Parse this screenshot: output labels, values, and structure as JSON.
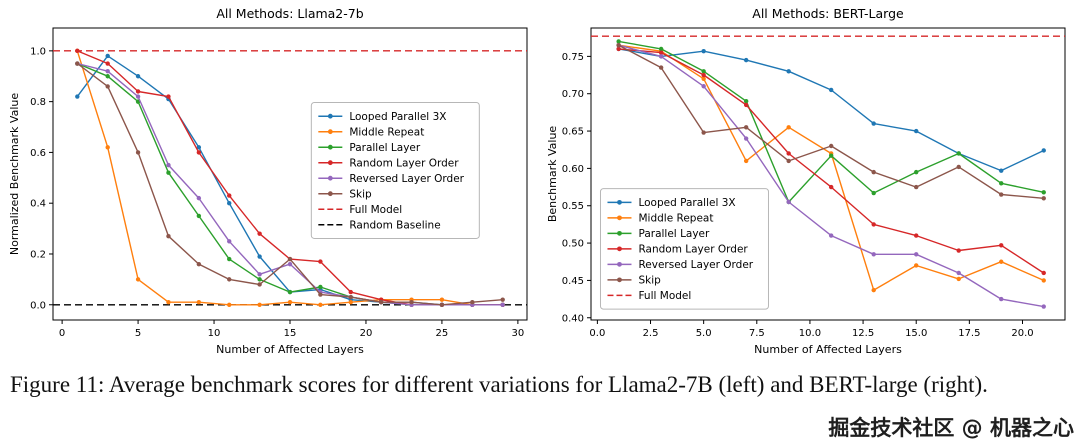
{
  "page": {
    "caption": "Figure 11: Average benchmark scores for different variations for Llama2-7B (left) and BERT-large (right).",
    "watermark": "掘金技术社区 @ 机器之心"
  },
  "chart_data": [
    {
      "type": "line",
      "title": "All Methods: Llama2-7b",
      "xlabel": "Number of Affected Layers",
      "ylabel": "Normalized Benchmark Value",
      "xlim": [
        -0.6,
        30.6
      ],
      "ylim": [
        -0.06,
        1.09
      ],
      "xticks": [
        0,
        5,
        10,
        15,
        20,
        25,
        30
      ],
      "xtick_labels": [
        "0",
        "5",
        "10",
        "15",
        "20",
        "25",
        "30"
      ],
      "yticks": [
        0.0,
        0.2,
        0.4,
        0.6,
        0.8,
        1.0
      ],
      "ytick_labels": [
        "0.0",
        "0.2",
        "0.4",
        "0.6",
        "0.8",
        "1.0"
      ],
      "grid": false,
      "legend_position": "center-right",
      "legend_frac": [
        0.545,
        0.255
      ],
      "x": [
        1,
        3,
        5,
        7,
        9,
        11,
        13,
        15,
        17,
        19,
        21,
        23,
        25,
        27,
        29
      ],
      "series": [
        {
          "name": "Looped Parallel 3X",
          "color": "#1f77b4",
          "values": [
            0.82,
            0.98,
            0.9,
            0.81,
            0.62,
            0.4,
            0.19,
            0.05,
            0.06,
            0.02,
            0.01,
            0.01,
            0.0,
            0.0,
            0.0
          ]
        },
        {
          "name": "Middle Repeat",
          "color": "#ff7f0e",
          "values": [
            1.0,
            0.62,
            0.1,
            0.01,
            0.01,
            0.0,
            0.0,
            0.01,
            0.0,
            0.01,
            0.02,
            0.02,
            0.02,
            0.0,
            0.0
          ]
        },
        {
          "name": "Parallel Layer",
          "color": "#2ca02c",
          "values": [
            0.95,
            0.9,
            0.8,
            0.52,
            0.35,
            0.18,
            0.1,
            0.05,
            0.07,
            0.03,
            0.01,
            0.0,
            0.0,
            0.0,
            0.0
          ]
        },
        {
          "name": "Random Layer Order",
          "color": "#d62728",
          "values": [
            1.0,
            0.95,
            0.84,
            0.82,
            0.6,
            0.43,
            0.28,
            0.18,
            0.17,
            0.05,
            0.02,
            0.0,
            0.0,
            0.0,
            0.0
          ]
        },
        {
          "name": "Reversed Layer Order",
          "color": "#9467bd",
          "values": [
            0.95,
            0.92,
            0.82,
            0.55,
            0.42,
            0.25,
            0.12,
            0.16,
            0.05,
            0.03,
            0.01,
            0.0,
            0.0,
            0.0,
            0.0
          ]
        },
        {
          "name": "Skip",
          "color": "#8c564b",
          "values": [
            0.95,
            0.86,
            0.6,
            0.27,
            0.16,
            0.1,
            0.08,
            0.18,
            0.04,
            0.03,
            0.01,
            0.01,
            0.0,
            0.01,
            0.02
          ]
        }
      ],
      "hlines": [
        {
          "label": "Full Model",
          "y": 1.0,
          "color": "#d62728"
        },
        {
          "label": "Random Baseline",
          "y": 0.0,
          "color": "#000000"
        }
      ]
    },
    {
      "type": "line",
      "title": "All Methods: BERT-Large",
      "xlabel": "Number of Affected Layers",
      "ylabel": "Benchmark Value",
      "xlim": [
        -0.3,
        22.0
      ],
      "ylim": [
        0.397,
        0.788
      ],
      "xticks": [
        0,
        2.5,
        5,
        7.5,
        10,
        12.5,
        15,
        17.5,
        20
      ],
      "xtick_labels": [
        "0.0",
        "2.5",
        "5.0",
        "7.5",
        "10.0",
        "12.5",
        "15.0",
        "17.5",
        "20.0"
      ],
      "yticks": [
        0.4,
        0.45,
        0.5,
        0.55,
        0.6,
        0.65,
        0.7,
        0.75
      ],
      "ytick_labels": [
        "0.40",
        "0.45",
        "0.50",
        "0.55",
        "0.60",
        "0.65",
        "0.70",
        "0.75"
      ],
      "grid": false,
      "legend_position": "lower-left",
      "legend_frac": [
        0.02,
        0.55
      ],
      "x": [
        1,
        3,
        5,
        7,
        9,
        11,
        13,
        15,
        17,
        19,
        21
      ],
      "series": [
        {
          "name": "Looped Parallel 3X",
          "color": "#1f77b4",
          "values": [
            0.76,
            0.75,
            0.757,
            0.745,
            0.73,
            0.705,
            0.66,
            0.65,
            0.62,
            0.597,
            0.624
          ]
        },
        {
          "name": "Middle Repeat",
          "color": "#ff7f0e",
          "values": [
            0.765,
            0.757,
            0.72,
            0.61,
            0.655,
            0.62,
            0.437,
            0.47,
            0.452,
            0.475,
            0.45
          ]
        },
        {
          "name": "Parallel Layer",
          "color": "#2ca02c",
          "values": [
            0.77,
            0.76,
            0.73,
            0.69,
            0.555,
            0.617,
            0.567,
            0.595,
            0.62,
            0.58,
            0.568
          ]
        },
        {
          "name": "Random Layer Order",
          "color": "#d62728",
          "values": [
            0.76,
            0.755,
            0.725,
            0.685,
            0.62,
            0.575,
            0.525,
            0.51,
            0.49,
            0.497,
            0.46
          ]
        },
        {
          "name": "Reversed Layer Order",
          "color": "#9467bd",
          "values": [
            0.765,
            0.75,
            0.71,
            0.64,
            0.555,
            0.51,
            0.485,
            0.485,
            0.46,
            0.425,
            0.415
          ]
        },
        {
          "name": "Skip",
          "color": "#8c564b",
          "values": [
            0.765,
            0.735,
            0.648,
            0.655,
            0.61,
            0.63,
            0.595,
            0.575,
            0.602,
            0.565,
            0.56
          ]
        }
      ],
      "hlines": [
        {
          "label": "Full Model",
          "y": 0.777,
          "color": "#d62728"
        }
      ]
    }
  ]
}
